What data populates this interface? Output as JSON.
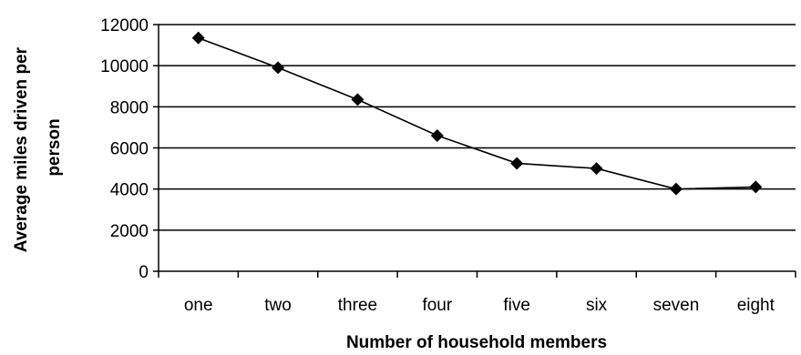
{
  "chart_data": {
    "type": "line",
    "title": "",
    "xlabel": "Number of household members",
    "ylabel_lines": [
      "Average miles driven per",
      "person"
    ],
    "categories": [
      "one",
      "two",
      "three",
      "four",
      "five",
      "six",
      "seven",
      "eight"
    ],
    "series": [
      {
        "values": [
          11350,
          9900,
          8350,
          6600,
          5250,
          5000,
          4000,
          4100
        ],
        "color": "#000000",
        "marker": "diamond"
      }
    ],
    "ylim": [
      0,
      12000
    ],
    "yticks": [
      0,
      2000,
      4000,
      6000,
      8000,
      10000,
      12000
    ],
    "grid": "horizontal",
    "legend": "none"
  }
}
